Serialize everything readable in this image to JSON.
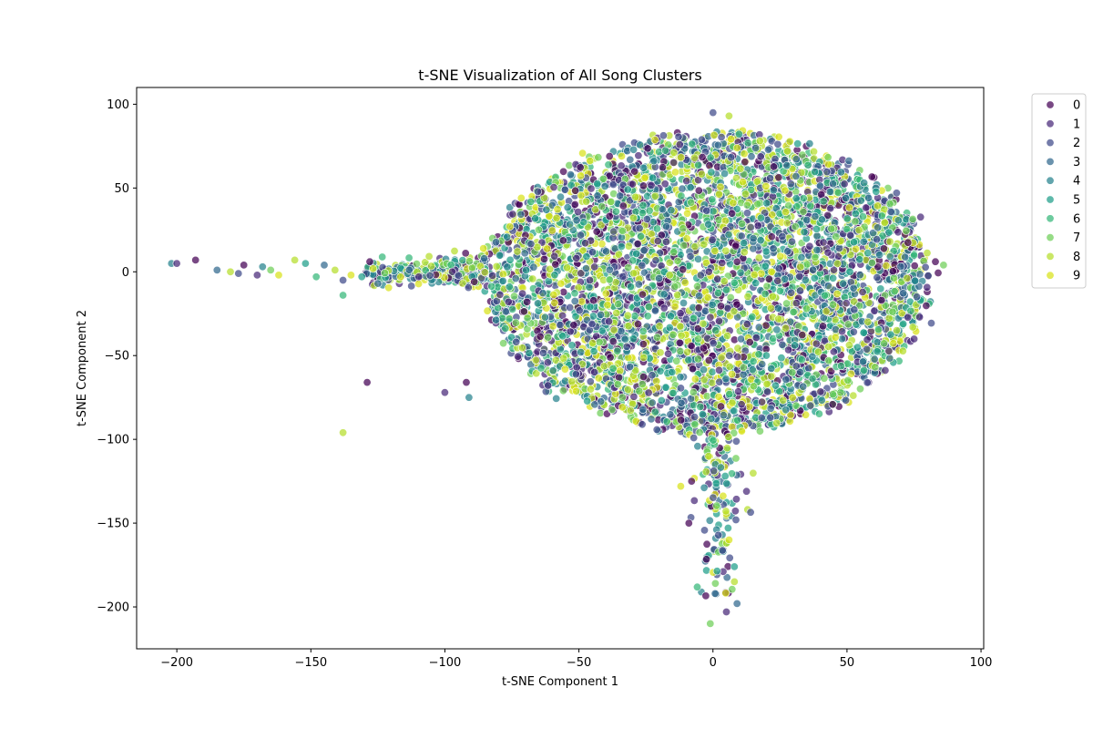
{
  "chart_data": {
    "type": "scatter",
    "title": "t-SNE Visualization of All Song Clusters",
    "xlabel": "t-SNE Component 1",
    "ylabel": "t-SNE Component 2",
    "xlim": [
      -215,
      101
    ],
    "ylim": [
      -225,
      110
    ],
    "xticks": [
      -200,
      -150,
      -100,
      -50,
      0,
      50,
      100
    ],
    "yticks": [
      -200,
      -150,
      -100,
      -50,
      0,
      50,
      100
    ],
    "grid": false,
    "legend_placement": "outside-top-right",
    "series": [
      {
        "name": "0",
        "color": "#440154"
      },
      {
        "name": "1",
        "color": "#482878"
      },
      {
        "name": "2",
        "color": "#3e4a89"
      },
      {
        "name": "3",
        "color": "#31688e"
      },
      {
        "name": "4",
        "color": "#26828e"
      },
      {
        "name": "5",
        "color": "#1f9e89"
      },
      {
        "name": "6",
        "color": "#35b779"
      },
      {
        "name": "7",
        "color": "#6ece58"
      },
      {
        "name": "8",
        "color": "#b5de2b"
      },
      {
        "name": "9",
        "color": "#d8e219"
      }
    ],
    "outliers": [
      {
        "x": -202,
        "y": 5,
        "c": 4
      },
      {
        "x": -200,
        "y": 5,
        "c": 1
      },
      {
        "x": -193,
        "y": 7,
        "c": 0
      },
      {
        "x": -185,
        "y": 1,
        "c": 3
      },
      {
        "x": -180,
        "y": 0,
        "c": 8
      },
      {
        "x": -177,
        "y": -1,
        "c": 2
      },
      {
        "x": -175,
        "y": 4,
        "c": 0
      },
      {
        "x": -170,
        "y": -2,
        "c": 1
      },
      {
        "x": -168,
        "y": 3,
        "c": 4
      },
      {
        "x": -165,
        "y": 1,
        "c": 7
      },
      {
        "x": -162,
        "y": -2,
        "c": 9
      },
      {
        "x": -156,
        "y": 7,
        "c": 8
      },
      {
        "x": -152,
        "y": 5,
        "c": 5
      },
      {
        "x": -148,
        "y": -3,
        "c": 6
      },
      {
        "x": -145,
        "y": 4,
        "c": 3
      },
      {
        "x": -141,
        "y": 1,
        "c": 8
      },
      {
        "x": -138,
        "y": -5,
        "c": 2
      },
      {
        "x": -138,
        "y": -14,
        "c": 6
      },
      {
        "x": -135,
        "y": -2,
        "c": 9
      },
      {
        "x": -131,
        "y": -3,
        "c": 5
      },
      {
        "x": -128,
        "y": 6,
        "c": 0
      },
      {
        "x": -125,
        "y": -7,
        "c": 3
      },
      {
        "x": -129,
        "y": -66,
        "c": 0
      },
      {
        "x": -138,
        "y": -96,
        "c": 8
      },
      {
        "x": -100,
        "y": -72,
        "c": 1
      },
      {
        "x": -92,
        "y": -66,
        "c": 0
      },
      {
        "x": -91,
        "y": -75,
        "c": 4
      },
      {
        "x": 5,
        "y": -203,
        "c": 1
      },
      {
        "x": -1,
        "y": -210,
        "c": 7
      },
      {
        "x": 9,
        "y": -198,
        "c": 3
      },
      {
        "x": 8,
        "y": -185,
        "c": 8
      },
      {
        "x": -12,
        "y": -128,
        "c": 9
      },
      {
        "x": 0,
        "y": 95,
        "c": 2
      },
      {
        "x": 6,
        "y": 93,
        "c": 8
      },
      {
        "x": 86,
        "y": 4,
        "c": 7
      },
      {
        "x": 83,
        "y": 6,
        "c": 0
      },
      {
        "x": -9,
        "y": -150,
        "c": 0
      },
      {
        "x": 8,
        "y": -176,
        "c": 5
      },
      {
        "x": 6,
        "y": -160,
        "c": 9
      }
    ]
  }
}
